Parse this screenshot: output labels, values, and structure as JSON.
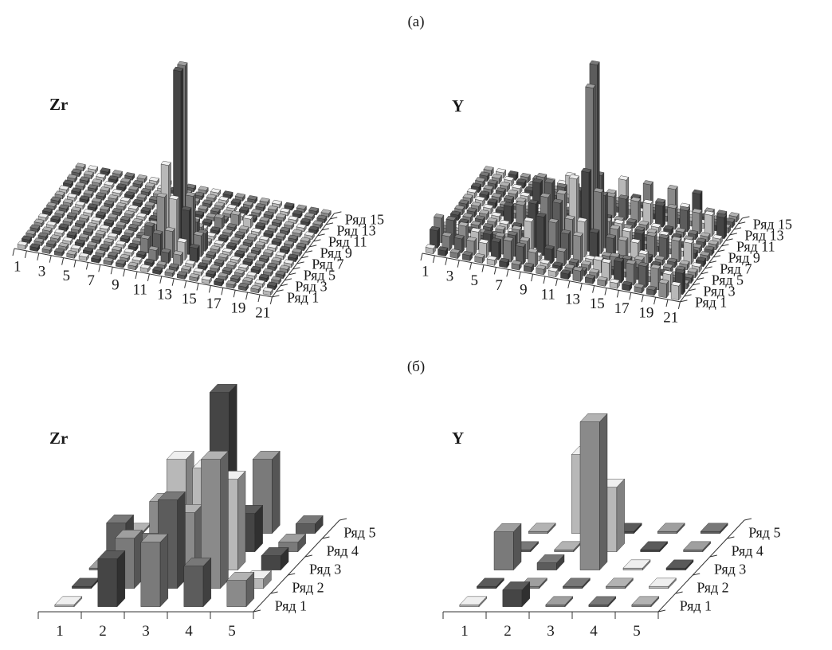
{
  "panel_labels": {
    "a": "(а)",
    "b": "(б)"
  },
  "chart_data": [
    {
      "type": "bar3d",
      "title": "Zr",
      "x_ticks": [
        "1",
        "3",
        "5",
        "7",
        "9",
        "11",
        "13",
        "15",
        "17",
        "19",
        "21"
      ],
      "row_labels": [
        "Ряд 1",
        "Ряд 3",
        "Ряд 5",
        "Ряд 7",
        "Ряд 9",
        "Ряд 11",
        "Ряд 13",
        "Ряд 15"
      ],
      "grid": {
        "cols": 21,
        "rows": 15
      },
      "values": [
        [
          12,
          7,
          1.0
        ],
        [
          12,
          6,
          1.0
        ],
        [
          11,
          6,
          0.45
        ],
        [
          12,
          5,
          0.3
        ],
        [
          13,
          6,
          0.3
        ],
        [
          11,
          5,
          0.3
        ],
        [
          13,
          5,
          0.25
        ],
        [
          10,
          5,
          0.12
        ],
        [
          14,
          5,
          0.12
        ],
        [
          12,
          4,
          0.15
        ],
        [
          11,
          4,
          0.12
        ],
        [
          13,
          4,
          0.1
        ],
        [
          10,
          4,
          0.08
        ],
        [
          14,
          4,
          0.08
        ],
        [
          11,
          3,
          0.06
        ],
        [
          12,
          3,
          0.06
        ],
        [
          13,
          3,
          0.06
        ],
        [
          10,
          6,
          0.1
        ],
        [
          14,
          6,
          0.1
        ],
        [
          11,
          7,
          0.15
        ],
        [
          13,
          7,
          0.12
        ],
        [
          12,
          8,
          0.08
        ],
        [
          11,
          8,
          0.06
        ],
        [
          13,
          8,
          0.06
        ],
        [
          14,
          10,
          0.06
        ],
        [
          15,
          11,
          0.06
        ],
        [
          16,
          11,
          0.05
        ]
      ],
      "baseline": 0.02
    },
    {
      "type": "bar3d",
      "title": "Y",
      "x_ticks": [
        "1",
        "3",
        "5",
        "7",
        "9",
        "11",
        "13",
        "15",
        "17",
        "19",
        "21"
      ],
      "row_labels": [
        "Ряд 1",
        "Ряд 3",
        "Ряд 5",
        "Ряд 7",
        "Ряд 9",
        "Ряд 11",
        "Ряд 13",
        "Ряд 15"
      ],
      "grid": {
        "cols": 21,
        "rows": 15
      },
      "values": [
        [
          12,
          8,
          1.0
        ],
        [
          12,
          7,
          0.9
        ],
        [
          12,
          6,
          0.45
        ],
        [
          11,
          6,
          0.4
        ],
        [
          13,
          6,
          0.35
        ],
        [
          11,
          7,
          0.3
        ],
        [
          13,
          7,
          0.3
        ],
        [
          10,
          6,
          0.3
        ],
        [
          9,
          6,
          0.35
        ],
        [
          9,
          5,
          0.3
        ],
        [
          10,
          5,
          0.28
        ],
        [
          8,
          5,
          0.25
        ],
        [
          9,
          4,
          0.22
        ],
        [
          10,
          4,
          0.2
        ],
        [
          8,
          4,
          0.18
        ],
        [
          11,
          4,
          0.15
        ],
        [
          12,
          4,
          0.15
        ],
        [
          11,
          5,
          0.2
        ],
        [
          12,
          5,
          0.2
        ],
        [
          13,
          5,
          0.15
        ],
        [
          7,
          4,
          0.12
        ],
        [
          7,
          3,
          0.12
        ],
        [
          8,
          3,
          0.1
        ],
        [
          6,
          3,
          0.1
        ],
        [
          5,
          3,
          0.1
        ],
        [
          4,
          3,
          0.1
        ],
        [
          3,
          3,
          0.12
        ],
        [
          2,
          3,
          0.14
        ],
        [
          1,
          3,
          0.14
        ],
        [
          1,
          2,
          0.1
        ],
        [
          2,
          2,
          0.08
        ],
        [
          3,
          2,
          0.08
        ],
        [
          4,
          2,
          0.08
        ],
        [
          5,
          2,
          0.08
        ],
        [
          6,
          2,
          0.1
        ],
        [
          7,
          2,
          0.12
        ],
        [
          8,
          2,
          0.1
        ],
        [
          9,
          2,
          0.08
        ],
        [
          10,
          3,
          0.08
        ],
        [
          11,
          3,
          0.08
        ],
        [
          14,
          3,
          0.07
        ],
        [
          15,
          2,
          0.1
        ],
        [
          16,
          2,
          0.12
        ],
        [
          17,
          2,
          0.12
        ],
        [
          18,
          2,
          0.12
        ],
        [
          19,
          2,
          0.12
        ],
        [
          20,
          2,
          0.1
        ],
        [
          21,
          2,
          0.12
        ],
        [
          21,
          1,
          0.08
        ],
        [
          20,
          1,
          0.08
        ],
        [
          13,
          1,
          0.06
        ],
        [
          13,
          8,
          0.12
        ],
        [
          14,
          8,
          0.12
        ],
        [
          14,
          7,
          0.12
        ],
        [
          15,
          7,
          0.12
        ],
        [
          16,
          7,
          0.12
        ],
        [
          17,
          7,
          0.12
        ],
        [
          18,
          7,
          0.12
        ],
        [
          19,
          7,
          0.12
        ],
        [
          20,
          7,
          0.12
        ],
        [
          14,
          6,
          0.1
        ],
        [
          15,
          6,
          0.1
        ],
        [
          16,
          6,
          0.1
        ],
        [
          17,
          5,
          0.08
        ],
        [
          17,
          4,
          0.08
        ],
        [
          15,
          4,
          0.07
        ],
        [
          16,
          4,
          0.07
        ],
        [
          17,
          3,
          0.07
        ],
        [
          9,
          8,
          0.12
        ],
        [
          10,
          8,
          0.12
        ],
        [
          11,
          8,
          0.12
        ],
        [
          8,
          8,
          0.12
        ],
        [
          7,
          8,
          0.12
        ],
        [
          6,
          8,
          0.12
        ],
        [
          5,
          8,
          0.1
        ],
        [
          6,
          12,
          0.12
        ],
        [
          7,
          12,
          0.12
        ],
        [
          8,
          12,
          0.12
        ],
        [
          9,
          12,
          0.12
        ],
        [
          10,
          12,
          0.12
        ],
        [
          11,
          12,
          0.12
        ],
        [
          12,
          12,
          0.12
        ],
        [
          13,
          12,
          0.12
        ],
        [
          14,
          12,
          0.12
        ],
        [
          15,
          12,
          0.12
        ],
        [
          16,
          12,
          0.12
        ],
        [
          17,
          12,
          0.12
        ],
        [
          18,
          12,
          0.12
        ],
        [
          19,
          12,
          0.12
        ],
        [
          20,
          12,
          0.12
        ],
        [
          21,
          12,
          0.12
        ],
        [
          6,
          13,
          0.12
        ],
        [
          8,
          14,
          0.12
        ],
        [
          10,
          15,
          0.12
        ],
        [
          12,
          15,
          0.12
        ],
        [
          14,
          15,
          0.12
        ],
        [
          16,
          15,
          0.12
        ],
        [
          18,
          15,
          0.12
        ]
      ],
      "baseline": 0.03
    },
    {
      "type": "bar3d",
      "title": "Zr",
      "x_ticks": [
        "1",
        "2",
        "3",
        "4",
        "5"
      ],
      "row_labels": [
        "Ряд 1",
        "Ряд 2",
        "Ряд 3",
        "Ряд 4",
        "Ряд 5"
      ],
      "grid": {
        "cols": 5,
        "rows": 5
      },
      "values": [
        [
          1,
          1,
          0.0
        ],
        [
          2,
          1,
          1.0
        ],
        [
          3,
          1,
          1.35
        ],
        [
          4,
          1,
          0.85
        ],
        [
          5,
          1,
          0.55
        ],
        [
          1,
          2,
          0.0
        ],
        [
          2,
          2,
          1.05
        ],
        [
          3,
          2,
          1.85
        ],
        [
          4,
          2,
          2.7
        ],
        [
          5,
          2,
          0.2
        ],
        [
          1,
          3,
          0.0
        ],
        [
          2,
          3,
          0.6
        ],
        [
          3,
          3,
          1.2
        ],
        [
          4,
          3,
          1.9
        ],
        [
          5,
          3,
          0.3
        ],
        [
          1,
          4,
          0.6
        ],
        [
          2,
          4,
          1.05
        ],
        [
          3,
          4,
          1.75
        ],
        [
          4,
          4,
          0.8
        ],
        [
          5,
          4,
          0.2
        ],
        [
          1,
          5,
          0.0
        ],
        [
          2,
          5,
          1.55
        ],
        [
          3,
          5,
          2.95
        ],
        [
          4,
          5,
          1.55
        ],
        [
          5,
          5,
          0.2
        ]
      ],
      "baseline": 0.05
    },
    {
      "type": "bar3d",
      "title": "Y",
      "x_ticks": [
        "1",
        "2",
        "3",
        "4",
        "5"
      ],
      "row_labels": [
        "Ряд 1",
        "Ряд 2",
        "Ряд 3",
        "Ряд 4",
        "Ряд 5"
      ],
      "grid": {
        "cols": 5,
        "rows": 5
      },
      "values": [
        [
          1,
          1,
          0.0
        ],
        [
          2,
          1,
          0.35
        ],
        [
          3,
          1,
          0.0
        ],
        [
          4,
          1,
          0.0
        ],
        [
          5,
          1,
          0.0
        ],
        [
          1,
          2,
          0.0
        ],
        [
          2,
          2,
          0.0
        ],
        [
          3,
          2,
          0.0
        ],
        [
          4,
          2,
          0.0
        ],
        [
          5,
          2,
          0.0
        ],
        [
          1,
          3,
          0.8
        ],
        [
          2,
          3,
          0.15
        ],
        [
          3,
          3,
          3.1
        ],
        [
          4,
          3,
          0.0
        ],
        [
          5,
          3,
          0.0
        ],
        [
          1,
          4,
          0.0
        ],
        [
          2,
          4,
          0.0
        ],
        [
          3,
          4,
          1.35
        ],
        [
          4,
          4,
          0.0
        ],
        [
          5,
          4,
          0.0
        ],
        [
          1,
          5,
          0.0
        ],
        [
          2,
          5,
          1.65
        ],
        [
          3,
          5,
          0.0
        ],
        [
          4,
          5,
          0.0
        ],
        [
          5,
          5,
          0.0
        ]
      ],
      "baseline": 0.05
    }
  ]
}
